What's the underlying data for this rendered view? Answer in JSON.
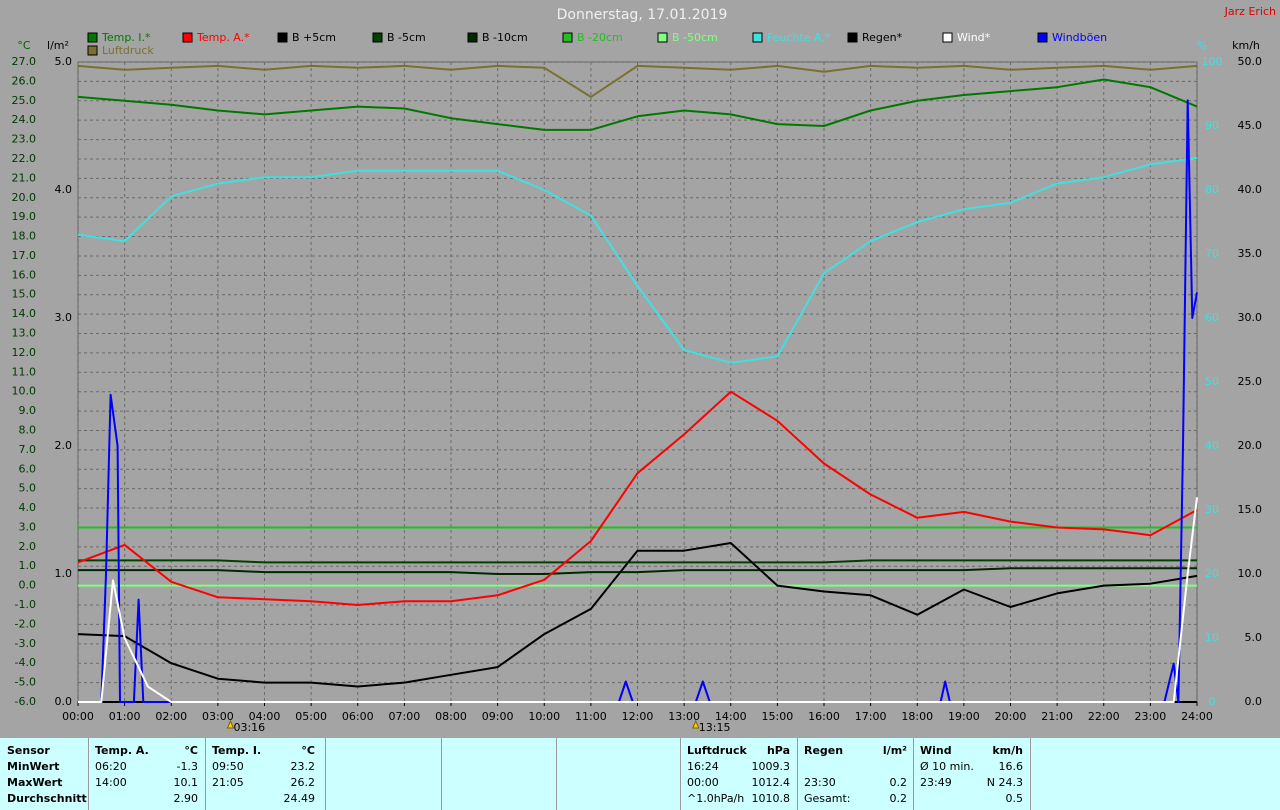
{
  "chart_data": {
    "type": "line",
    "title": "Donnerstag, 17.01.2019",
    "author": "Jarz Erich",
    "ylabel": "°C",
    "y4label": "l/m²",
    "y2label": "%",
    "y3label": "km/h",
    "xlim": [
      0,
      24
    ],
    "xticks": [
      {
        "value": 0,
        "label": "00:00"
      },
      {
        "value": 1,
        "label": "01:00"
      },
      {
        "value": 2,
        "label": "02:00"
      },
      {
        "value": 3,
        "label": "03:00"
      },
      {
        "value": 4,
        "label": "04:00"
      },
      {
        "value": 5,
        "label": "05:00"
      },
      {
        "value": 6,
        "label": "06:00"
      },
      {
        "value": 7,
        "label": "07:00"
      },
      {
        "value": 8,
        "label": "08:00"
      },
      {
        "value": 9,
        "label": "09:00"
      },
      {
        "value": 10,
        "label": "10:00"
      },
      {
        "value": 11,
        "label": "11:00"
      },
      {
        "value": 12,
        "label": "12:00"
      },
      {
        "value": 13,
        "label": "13:00"
      },
      {
        "value": 14,
        "label": "14:00"
      },
      {
        "value": 15,
        "label": "15:00"
      },
      {
        "value": 16,
        "label": "16:00"
      },
      {
        "value": 17,
        "label": "17:00"
      },
      {
        "value": 18,
        "label": "18:00"
      },
      {
        "value": 19,
        "label": "19:00"
      },
      {
        "value": 20,
        "label": "20:00"
      },
      {
        "value": 21,
        "label": "21:00"
      },
      {
        "value": 22,
        "label": "22:00"
      },
      {
        "value": 23,
        "label": "23:00"
      },
      {
        "value": 24,
        "label": "24:00"
      }
    ],
    "ylim": [
      -6,
      27
    ],
    "yticks": [
      {
        "value": 27,
        "label": "27.0"
      },
      {
        "value": 26,
        "label": "26.0"
      },
      {
        "value": 25,
        "label": "25.0"
      },
      {
        "value": 24,
        "label": "24.0"
      },
      {
        "value": 23,
        "label": "23.0"
      },
      {
        "value": 22,
        "label": "22.0"
      },
      {
        "value": 21,
        "label": "21.0"
      },
      {
        "value": 20,
        "label": "20.0"
      },
      {
        "value": 19,
        "label": "19.0"
      },
      {
        "value": 18,
        "label": "18.0"
      },
      {
        "value": 17,
        "label": "17.0"
      },
      {
        "value": 16,
        "label": "16.0"
      },
      {
        "value": 15,
        "label": "15.0"
      },
      {
        "value": 14,
        "label": "14.0"
      },
      {
        "value": 13,
        "label": "13.0"
      },
      {
        "value": 12,
        "label": "12.0"
      },
      {
        "value": 11,
        "label": "11.0"
      },
      {
        "value": 10,
        "label": "10.0"
      },
      {
        "value": 9,
        "label": "9.0"
      },
      {
        "value": 8,
        "label": "8.0"
      },
      {
        "value": 7,
        "label": "7.0"
      },
      {
        "value": 6,
        "label": "6.0"
      },
      {
        "value": 5,
        "label": "5.0"
      },
      {
        "value": 4,
        "label": "4.0"
      },
      {
        "value": 3,
        "label": "3.0"
      },
      {
        "value": 2,
        "label": "2.0"
      },
      {
        "value": 1,
        "label": "1.0"
      },
      {
        "value": 0,
        "label": "0.0"
      },
      {
        "value": -1,
        "label": "-1.0"
      },
      {
        "value": -2,
        "label": "-2.0"
      },
      {
        "value": -3,
        "label": "-3.0"
      },
      {
        "value": -4,
        "label": "-4.0"
      },
      {
        "value": -5,
        "label": "-5.0"
      },
      {
        "value": -6,
        "label": "-6.0"
      }
    ],
    "y4lim": [
      0,
      5
    ],
    "y4ticks": [
      {
        "value": 0,
        "label": "0.0"
      },
      {
        "value": 1,
        "label": "1.0"
      },
      {
        "value": 2,
        "label": "2.0"
      },
      {
        "value": 3,
        "label": "3.0"
      },
      {
        "value": 4,
        "label": "4.0"
      },
      {
        "value": 5,
        "label": "5.0"
      }
    ],
    "y2lim": [
      0,
      100
    ],
    "y2ticks": [
      0,
      10,
      20,
      30,
      40,
      50,
      60,
      70,
      80,
      90,
      100
    ],
    "y3lim": [
      0,
      50
    ],
    "y3ticks": [
      {
        "value": 0,
        "label": "0.0"
      },
      {
        "value": 5,
        "label": "5.0"
      },
      {
        "value": 10,
        "label": "10.0"
      },
      {
        "value": 15,
        "label": "15.0"
      },
      {
        "value": 20,
        "label": "20.0"
      },
      {
        "value": 25,
        "label": "25.0"
      },
      {
        "value": 30,
        "label": "30.0"
      },
      {
        "value": 35,
        "label": "35.0"
      },
      {
        "value": 40,
        "label": "40.0"
      },
      {
        "value": 45,
        "label": "45.0"
      },
      {
        "value": 50,
        "label": "50.0"
      }
    ],
    "grid": true,
    "x": [
      0,
      1,
      2,
      3,
      4,
      5,
      6,
      7,
      8,
      9,
      10,
      11,
      12,
      13,
      14,
      15,
      16,
      17,
      18,
      19,
      20,
      21,
      22,
      23,
      24
    ],
    "series": [
      {
        "name": "Temp. I.*",
        "color": "#007800",
        "values": [
          25.2,
          25.0,
          24.8,
          24.5,
          24.3,
          24.5,
          24.7,
          24.6,
          24.1,
          23.8,
          23.5,
          23.5,
          24.2,
          24.5,
          24.3,
          23.8,
          23.7,
          24.5,
          25.0,
          25.3,
          25.5,
          25.7,
          26.1,
          25.7,
          24.7
        ]
      },
      {
        "name": "Temp. A.*",
        "color": "#ff0000",
        "values": [
          1.2,
          2.1,
          0.2,
          -0.6,
          -0.7,
          -0.8,
          -1.0,
          -0.8,
          -0.8,
          -0.5,
          0.3,
          2.3,
          5.8,
          7.8,
          10.0,
          8.5,
          6.3,
          4.7,
          3.5,
          3.8,
          3.3,
          3.0,
          2.9,
          2.6,
          3.9
        ]
      },
      {
        "name": "B +5cm",
        "color": "#000000",
        "values": [
          -2.5,
          -2.6,
          -4.0,
          -4.8,
          -5.0,
          -5.0,
          -5.2,
          -5.0,
          -4.6,
          -4.2,
          -2.5,
          -1.2,
          1.8,
          1.8,
          2.2,
          0.0,
          -0.3,
          -0.5,
          -1.5,
          -0.2,
          -1.1,
          -0.4,
          0.0,
          0.1,
          0.5
        ]
      },
      {
        "name": "B -5cm",
        "color": "#004000",
        "values": [
          1.3,
          1.3,
          1.3,
          1.3,
          1.2,
          1.2,
          1.2,
          1.2,
          1.2,
          1.2,
          1.2,
          1.2,
          1.2,
          1.2,
          1.2,
          1.2,
          1.2,
          1.3,
          1.3,
          1.3,
          1.3,
          1.3,
          1.3,
          1.3,
          1.3
        ]
      },
      {
        "name": "B -10cm",
        "color": "#002800",
        "values": [
          0.8,
          0.8,
          0.8,
          0.8,
          0.7,
          0.7,
          0.7,
          0.7,
          0.7,
          0.6,
          0.6,
          0.7,
          0.7,
          0.8,
          0.8,
          0.8,
          0.8,
          0.8,
          0.8,
          0.8,
          0.9,
          0.9,
          0.9,
          0.9,
          0.9
        ]
      },
      {
        "name": "B -20cm",
        "color": "#20c020",
        "values": [
          3.0,
          3.0,
          3.0,
          3.0,
          3.0,
          3.0,
          3.0,
          3.0,
          3.0,
          3.0,
          3.0,
          3.0,
          3.0,
          3.0,
          3.0,
          3.0,
          3.0,
          3.0,
          3.0,
          3.0,
          3.0,
          3.0,
          3.0,
          3.0,
          3.0
        ]
      },
      {
        "name": "B -50cm",
        "color": "#80ff80",
        "values": [
          0.0,
          0.0,
          0.0,
          0.0,
          0.0,
          0.0,
          0.0,
          0.0,
          0.0,
          0.0,
          0.0,
          0.0,
          0.0,
          0.0,
          0.0,
          0.0,
          0.0,
          0.0,
          0.0,
          0.0,
          0.0,
          0.0,
          0.0,
          0.0,
          0.0
        ]
      },
      {
        "name": "Feuchte A.*",
        "color": "#40e0e0",
        "axis": "y2",
        "values": [
          73,
          72,
          79,
          81,
          82,
          82,
          83,
          83,
          83,
          83,
          80,
          76,
          65,
          55,
          53,
          54,
          67,
          72,
          75,
          77,
          78,
          81,
          82,
          84,
          85
        ]
      },
      {
        "name": "Regen*",
        "color": "#000000",
        "axis": "y4",
        "values": [
          0,
          0,
          0,
          0,
          0,
          0,
          0,
          0,
          0,
          0,
          0,
          0,
          0,
          0,
          0,
          0,
          0,
          0,
          0,
          0,
          0,
          0,
          0,
          0,
          0
        ]
      },
      {
        "name": "Wind*",
        "color": "#ffffff",
        "axis": "y3",
        "x": [
          0,
          0.5,
          0.75,
          1,
          1.5,
          2,
          2.5,
          23.5,
          23.8,
          24
        ],
        "values": [
          0,
          0,
          9.5,
          5,
          1.2,
          0,
          0,
          0,
          10,
          16
        ]
      },
      {
        "name": "Windböen",
        "color": "#0000ff",
        "axis": "y3",
        "x": [
          0,
          0.5,
          0.6,
          0.7,
          0.85,
          0.9,
          1.2,
          1.3,
          1.4,
          1.6,
          11.6,
          11.75,
          11.9,
          13.25,
          13.4,
          13.55,
          18.5,
          18.6,
          18.7,
          23.3,
          23.5,
          23.6,
          23.7,
          23.8,
          23.9,
          24
        ],
        "values": [
          0,
          0,
          10,
          24,
          20,
          0,
          0,
          8,
          0,
          0,
          0,
          1.6,
          0,
          0,
          1.6,
          0,
          0,
          1.6,
          0,
          0,
          3,
          0,
          20,
          47,
          30,
          32
        ]
      },
      {
        "name": "Luftdruck",
        "color": "#7a7030",
        "values": [
          26.8,
          26.6,
          26.7,
          26.8,
          26.6,
          26.8,
          26.7,
          26.8,
          26.6,
          26.8,
          26.7,
          25.2,
          26.8,
          26.7,
          26.6,
          26.8,
          26.5,
          26.8,
          26.7,
          26.8,
          26.6,
          26.7,
          26.8,
          26.6,
          26.8
        ]
      }
    ],
    "annotations": [
      {
        "label": "03:16",
        "x": 3.27
      },
      {
        "label": "13:15",
        "x": 13.25
      }
    ]
  },
  "summary": {
    "row_labels": [
      "Sensor",
      "MinWert",
      "MaxWert",
      "Durchschnitt"
    ],
    "blocks": [
      {
        "name": "Temp. A.",
        "unit": "°C",
        "min": {
          "time": "06:20",
          "value": "-1.3"
        },
        "max": {
          "time": "14:00",
          "value": "10.1"
        },
        "avg": {
          "value": "2.90"
        }
      },
      {
        "name": "Temp. I.",
        "unit": "°C",
        "min": {
          "time": "09:50",
          "value": "23.2"
        },
        "max": {
          "time": "21:05",
          "value": "26.2"
        },
        "avg": {
          "value": "24.49"
        }
      },
      {
        "name": "Luftdruck",
        "unit": "hPa",
        "min": {
          "time": "16:24",
          "value": "1009.3"
        },
        "max": {
          "time": "00:00",
          "value": "1012.4"
        },
        "avg": {
          "time": "^1.0hPa/h",
          "value": "1010.8"
        }
      },
      {
        "name": "Regen",
        "unit": "l/m²",
        "max": {
          "time": "23:30",
          "value": "0.2"
        },
        "avg": {
          "time": "Gesamt:",
          "value": "0.2"
        }
      },
      {
        "name": "Wind",
        "unit": "km/h",
        "min": {
          "time": "Ø 10 min.",
          "value": "16.6"
        },
        "max": {
          "time": "23:49",
          "value": "N 24.3"
        },
        "avg": {
          "value": "0.5"
        }
      }
    ]
  }
}
